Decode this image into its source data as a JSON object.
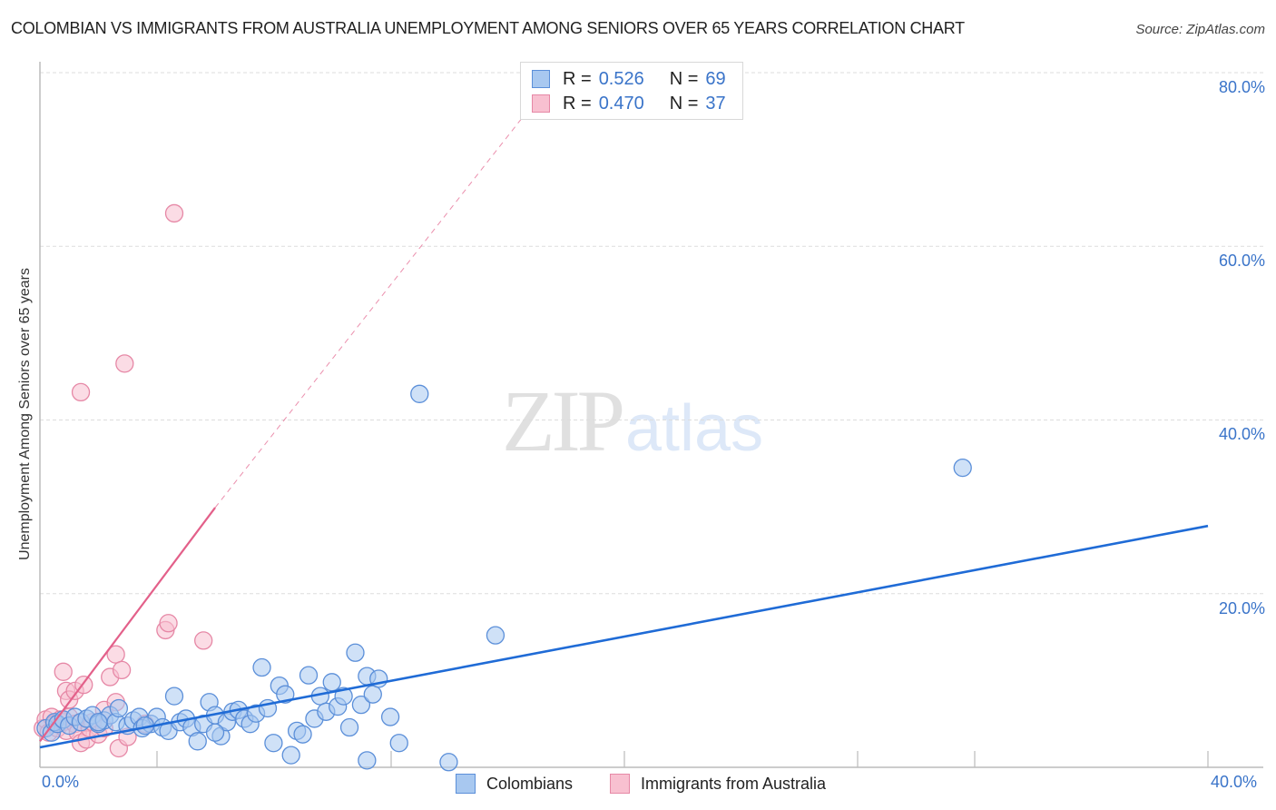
{
  "header": {
    "title": "COLOMBIAN VS IMMIGRANTS FROM AUSTRALIA UNEMPLOYMENT AMONG SENIORS OVER 65 YEARS CORRELATION CHART",
    "source": "Source: ZipAtlas.com"
  },
  "watermark": {
    "zip": "ZIP",
    "atlas": "atlas"
  },
  "legend": {
    "rows": [
      {
        "series": "Colombians",
        "r_label": "R =",
        "r_value": "0.526",
        "n_label": "N =",
        "n_value": "69",
        "color": "#a8c8f0",
        "border": "#5b8fd9"
      },
      {
        "series": "Immigrants from Australia",
        "r_label": "R =",
        "r_value": "0.470",
        "n_label": "N =",
        "n_value": "37",
        "color": "#f8c0d0",
        "border": "#e688a6"
      }
    ]
  },
  "bottom_legend": [
    {
      "label": "Colombians",
      "color": "#a8c8f0",
      "border": "#5b8fd9"
    },
    {
      "label": "Immigrants from Australia",
      "color": "#f8c0d0",
      "border": "#e688a6"
    }
  ],
  "axes": {
    "y_label": "Unemployment Among Seniors over 65 years",
    "y_ticks": [
      "80.0%",
      "60.0%",
      "40.0%",
      "20.0%"
    ],
    "x_ticks": [
      "0.0%",
      "40.0%"
    ]
  },
  "colors": {
    "colombians_fill": "#a8c8f0",
    "colombians_stroke": "#5b8fd9",
    "colombians_line": "#1f6bd6",
    "australia_fill": "#f8c0d0",
    "australia_stroke": "#e688a6",
    "australia_line": "#e3608a",
    "tick_label": "#3a74c9"
  },
  "chart_data": {
    "type": "scatter",
    "title": "COLOMBIAN VS IMMIGRANTS FROM AUSTRALIA UNEMPLOYMENT AMONG SENIORS OVER 65 YEARS CORRELATION CHART",
    "xlabel": "",
    "ylabel": "Unemployment Among Seniors over 65 years",
    "xlim": [
      0,
      40
    ],
    "ylim": [
      0,
      80
    ],
    "x_tick_labels": [
      "0.0%",
      "40.0%"
    ],
    "y_tick_labels": [
      "20.0%",
      "40.0%",
      "60.0%",
      "80.0%"
    ],
    "grid": true,
    "legend_position": "bottom",
    "series": [
      {
        "name": "Colombians",
        "r": 0.526,
        "n": 69,
        "trendline": {
          "x": [
            0,
            40
          ],
          "y": [
            2.3,
            27.8
          ]
        },
        "points": [
          [
            0.2,
            4.5
          ],
          [
            0.4,
            4.0
          ],
          [
            0.5,
            5.2
          ],
          [
            0.6,
            5.0
          ],
          [
            0.8,
            5.5
          ],
          [
            1.0,
            4.8
          ],
          [
            1.2,
            5.8
          ],
          [
            1.4,
            5.2
          ],
          [
            1.6,
            5.6
          ],
          [
            1.8,
            6.0
          ],
          [
            2.0,
            5.0
          ],
          [
            2.2,
            5.4
          ],
          [
            2.4,
            6.0
          ],
          [
            2.6,
            5.2
          ],
          [
            2.7,
            6.8
          ],
          [
            3.0,
            4.8
          ],
          [
            3.2,
            5.4
          ],
          [
            3.4,
            5.8
          ],
          [
            3.5,
            4.5
          ],
          [
            3.8,
            5.0
          ],
          [
            4.0,
            5.8
          ],
          [
            4.2,
            4.6
          ],
          [
            4.4,
            4.2
          ],
          [
            4.6,
            8.2
          ],
          [
            4.8,
            5.2
          ],
          [
            5.0,
            5.6
          ],
          [
            5.2,
            4.6
          ],
          [
            5.4,
            3.0
          ],
          [
            5.6,
            5.0
          ],
          [
            5.8,
            7.5
          ],
          [
            6.0,
            6.0
          ],
          [
            6.2,
            3.6
          ],
          [
            6.4,
            5.2
          ],
          [
            6.6,
            6.4
          ],
          [
            6.8,
            6.6
          ],
          [
            7.0,
            5.6
          ],
          [
            7.2,
            5.0
          ],
          [
            7.4,
            6.2
          ],
          [
            7.6,
            11.5
          ],
          [
            7.8,
            6.8
          ],
          [
            8.0,
            2.8
          ],
          [
            8.2,
            9.4
          ],
          [
            8.4,
            8.4
          ],
          [
            8.6,
            1.4
          ],
          [
            8.8,
            4.2
          ],
          [
            9.0,
            3.8
          ],
          [
            9.2,
            10.6
          ],
          [
            9.4,
            5.6
          ],
          [
            9.6,
            8.2
          ],
          [
            9.8,
            6.4
          ],
          [
            10.0,
            9.8
          ],
          [
            10.2,
            7.0
          ],
          [
            10.4,
            8.2
          ],
          [
            10.6,
            4.6
          ],
          [
            10.8,
            13.2
          ],
          [
            11.0,
            7.2
          ],
          [
            11.2,
            10.5
          ],
          [
            11.4,
            8.4
          ],
          [
            11.6,
            10.2
          ],
          [
            11.2,
            0.8
          ],
          [
            12.0,
            5.8
          ],
          [
            12.3,
            2.8
          ],
          [
            13.0,
            43.0
          ],
          [
            14.0,
            0.6
          ],
          [
            15.6,
            15.2
          ],
          [
            31.6,
            34.5
          ],
          [
            2.0,
            5.2
          ],
          [
            3.6,
            4.8
          ],
          [
            6.0,
            4.0
          ]
        ]
      },
      {
        "name": "Immigrants from Australia",
        "r": 0.47,
        "n": 37,
        "trendline": {
          "x": [
            0,
            6.0
          ],
          "y": [
            3.0,
            29.9
          ],
          "dashed_extension": {
            "x": [
              6.0,
              17.5
            ],
            "y": [
              29.9,
              79.0
            ]
          }
        },
        "points": [
          [
            0.1,
            4.5
          ],
          [
            0.2,
            5.5
          ],
          [
            0.3,
            4.0
          ],
          [
            0.4,
            5.8
          ],
          [
            0.5,
            5.0
          ],
          [
            0.6,
            4.5
          ],
          [
            0.7,
            5.5
          ],
          [
            0.8,
            5.2
          ],
          [
            0.9,
            4.2
          ],
          [
            1.0,
            5.8
          ],
          [
            0.8,
            11.0
          ],
          [
            0.9,
            8.8
          ],
          [
            1.0,
            7.8
          ],
          [
            1.2,
            8.8
          ],
          [
            1.2,
            5.0
          ],
          [
            1.3,
            4.0
          ],
          [
            1.4,
            2.8
          ],
          [
            1.5,
            9.5
          ],
          [
            1.6,
            3.2
          ],
          [
            1.7,
            4.5
          ],
          [
            1.8,
            5.2
          ],
          [
            2.0,
            3.8
          ],
          [
            2.2,
            6.6
          ],
          [
            2.2,
            4.5
          ],
          [
            2.4,
            10.4
          ],
          [
            2.6,
            13.0
          ],
          [
            2.7,
            2.2
          ],
          [
            2.8,
            11.2
          ],
          [
            2.6,
            7.5
          ],
          [
            3.0,
            3.5
          ],
          [
            3.6,
            5.0
          ],
          [
            4.3,
            15.8
          ],
          [
            4.4,
            16.6
          ],
          [
            5.6,
            14.6
          ],
          [
            1.4,
            43.2
          ],
          [
            2.9,
            46.5
          ],
          [
            4.6,
            63.8
          ]
        ]
      }
    ]
  }
}
